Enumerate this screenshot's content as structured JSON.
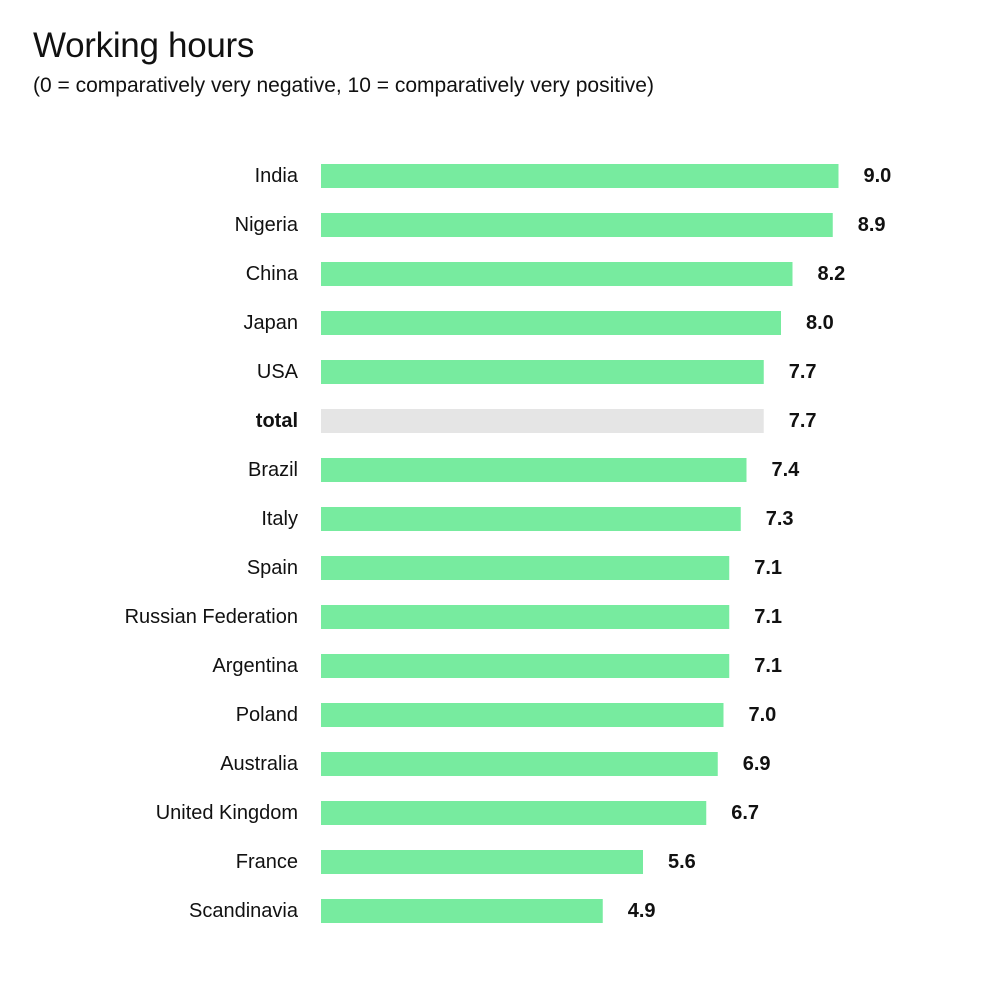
{
  "colors": {
    "bar": "#77eb9f",
    "highlight_bar": "#e5e5e5",
    "text": "#111111",
    "background": "#ffffff"
  },
  "chart_data": {
    "type": "bar",
    "orientation": "horizontal",
    "title": "Working hours",
    "subtitle": "(0 = comparatively very negative, 10 = comparatively very positive)",
    "xlabel": "",
    "ylabel": "",
    "xlim": [
      0,
      10
    ],
    "grid": false,
    "legend": "none",
    "highlight_category": "total",
    "categories": [
      "India",
      "Nigeria",
      "China",
      "Japan",
      "USA",
      "total",
      "Brazil",
      "Italy",
      "Spain",
      "Russian Federation",
      "Argentina",
      "Poland",
      "Australia",
      "United Kingdom",
      "France",
      "Scandinavia"
    ],
    "values": [
      9.0,
      8.9,
      8.2,
      8.0,
      7.7,
      7.7,
      7.4,
      7.3,
      7.1,
      7.1,
      7.1,
      7.0,
      6.9,
      6.7,
      5.6,
      4.9
    ],
    "value_labels": [
      "9.0",
      "8.9",
      "8.2",
      "8.0",
      "7.7",
      "7.7",
      "7.4",
      "7.3",
      "7.1",
      "7.1",
      "7.1",
      "7.0",
      "6.9",
      "6.7",
      "5.6",
      "4.9"
    ]
  }
}
